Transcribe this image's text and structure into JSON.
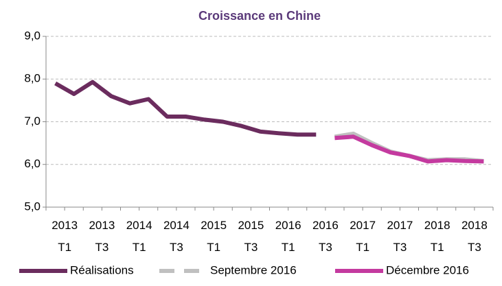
{
  "chart_data": {
    "type": "line",
    "title": "Croissance en Chine",
    "categories": [
      "2013\nT1",
      null,
      "2013\nT3",
      null,
      "2014\nT1",
      null,
      "2014\nT3",
      null,
      "2015\nT1",
      null,
      "2015\nT3",
      null,
      "2016\nT1",
      null,
      "2016\nT3",
      null,
      "2017\nT1",
      null,
      "2017\nT3",
      null,
      "2018\nT1",
      null,
      "2018\nT3",
      null
    ],
    "series": [
      {
        "name": "Réalisations",
        "color": "#6b2c5e",
        "values": [
          7.9,
          7.65,
          7.93,
          7.6,
          7.43,
          7.53,
          7.12,
          7.12,
          7.05,
          7.0,
          6.9,
          6.77,
          6.73,
          6.7,
          6.7,
          null,
          null,
          null,
          null,
          null,
          null,
          null,
          null,
          null
        ]
      },
      {
        "name": "Septembre 2016",
        "color": "#c0c0c0",
        "values": [
          null,
          null,
          null,
          null,
          null,
          null,
          null,
          null,
          null,
          null,
          null,
          null,
          null,
          null,
          null,
          6.65,
          6.72,
          6.5,
          6.3,
          6.2,
          6.1,
          6.12,
          6.12,
          6.08
        ]
      },
      {
        "name": "Décembre 2016",
        "color": "#c43a9f",
        "values": [
          null,
          null,
          null,
          null,
          null,
          null,
          null,
          null,
          null,
          null,
          null,
          null,
          null,
          null,
          null,
          6.62,
          6.65,
          6.45,
          6.28,
          6.2,
          6.07,
          6.1,
          6.08,
          6.07
        ]
      }
    ],
    "ylim": [
      5,
      9
    ],
    "yticks": [
      {
        "value": 5,
        "label": "5,0"
      },
      {
        "value": 6,
        "label": "6,0"
      },
      {
        "value": 7,
        "label": "7,0"
      },
      {
        "value": 8,
        "label": "8,0"
      },
      {
        "value": 9,
        "label": "9,0"
      }
    ],
    "grid": true,
    "legend": "bottom"
  }
}
